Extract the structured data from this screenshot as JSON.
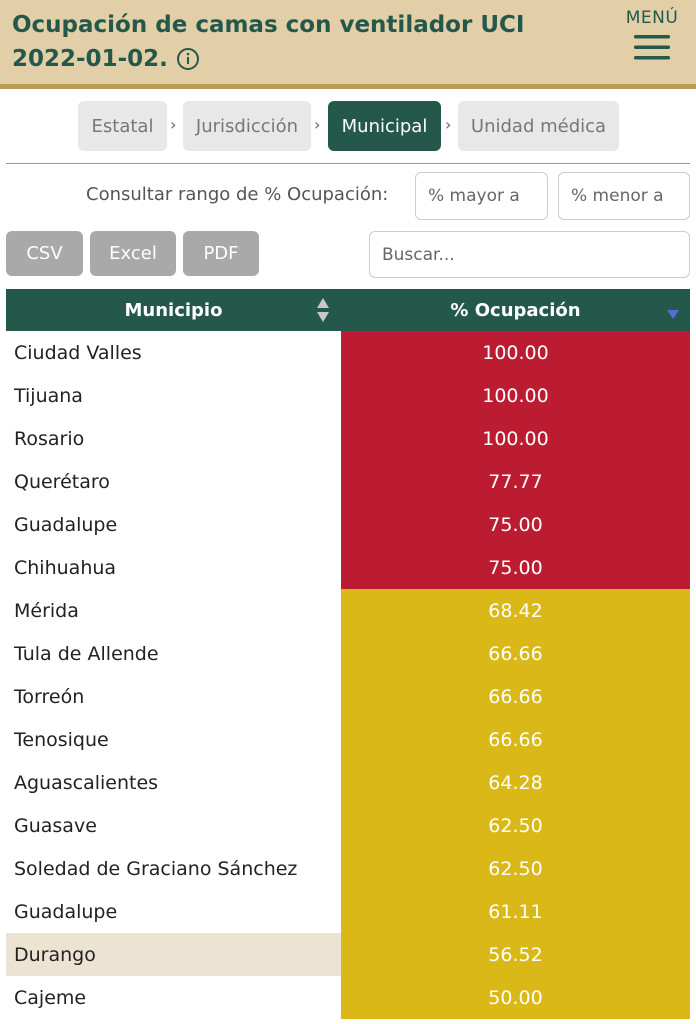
{
  "header": {
    "title_line1": "Ocupación de camas con ventilador UCI",
    "title_line2": "2022-01-02.",
    "menu_label": "MENÚ",
    "colors": {
      "header_bg": "#e2cfa8",
      "accent": "#24584a"
    }
  },
  "tabs": [
    {
      "label": "Estatal",
      "active": false
    },
    {
      "label": "Jurisdicción",
      "active": false
    },
    {
      "label": "Municipal",
      "active": true
    },
    {
      "label": "Unidad médica",
      "active": false
    }
  ],
  "range": {
    "label": "Consultar rango de % Ocupación:",
    "min_placeholder": "% mayor a",
    "max_placeholder": "% menor a"
  },
  "export": {
    "csv": "CSV",
    "excel": "Excel",
    "pdf": "PDF"
  },
  "search": {
    "placeholder": "Buscar..."
  },
  "table": {
    "headers": {
      "municipio": "Municipio",
      "ocupacion": "% Ocupación"
    },
    "status_colors": {
      "high": "#bc1c31",
      "medium": "#d9b818",
      "highlight_row": "#ede3d2"
    },
    "rows": [
      {
        "municipio": "Ciudad Valles",
        "ocupacion": "100.00",
        "level": "high"
      },
      {
        "municipio": "Tijuana",
        "ocupacion": "100.00",
        "level": "high"
      },
      {
        "municipio": "Rosario",
        "ocupacion": "100.00",
        "level": "high"
      },
      {
        "municipio": "Querétaro",
        "ocupacion": "77.77",
        "level": "high"
      },
      {
        "municipio": "Guadalupe",
        "ocupacion": "75.00",
        "level": "high"
      },
      {
        "municipio": "Chihuahua",
        "ocupacion": "75.00",
        "level": "high"
      },
      {
        "municipio": "Mérida",
        "ocupacion": "68.42",
        "level": "medium"
      },
      {
        "municipio": "Tula de Allende",
        "ocupacion": "66.66",
        "level": "medium"
      },
      {
        "municipio": "Torreón",
        "ocupacion": "66.66",
        "level": "medium"
      },
      {
        "municipio": "Tenosique",
        "ocupacion": "66.66",
        "level": "medium"
      },
      {
        "municipio": "Aguascalientes",
        "ocupacion": "64.28",
        "level": "medium"
      },
      {
        "municipio": "Guasave",
        "ocupacion": "62.50",
        "level": "medium"
      },
      {
        "municipio": "Soledad de Graciano Sánchez",
        "ocupacion": "62.50",
        "level": "medium"
      },
      {
        "municipio": "Guadalupe",
        "ocupacion": "61.11",
        "level": "medium"
      },
      {
        "municipio": "Durango",
        "ocupacion": "56.52",
        "level": "medium",
        "highlighted": true
      },
      {
        "municipio": "Cajeme",
        "ocupacion": "50.00",
        "level": "medium"
      }
    ]
  }
}
